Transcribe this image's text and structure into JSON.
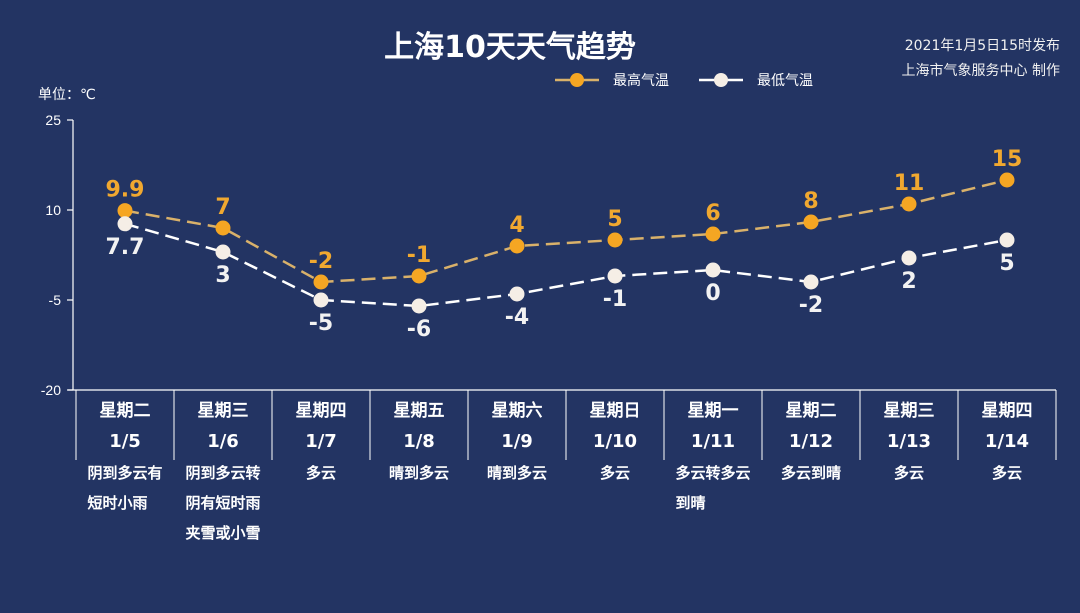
{
  "title": "上海10天天气趋势",
  "publish": {
    "time": "2021年1月5日15时发布",
    "maker": "上海市气象服务中心 制作"
  },
  "colors": {
    "background": "#233463",
    "high": "#f5a623",
    "high_line": "#d9b16a",
    "low": "#f5eee6"
  },
  "chart_data": {
    "type": "line",
    "title": "上海10天天气趋势",
    "ylabel": "单位：℃",
    "ylim": [
      -20,
      25
    ],
    "yticks": [
      25,
      10,
      -5,
      -20
    ],
    "ytick_labels": [
      "25",
      "10",
      "-5",
      "-20"
    ],
    "legend_position": "top-center",
    "categories": [
      "1/5",
      "1/6",
      "1/7",
      "1/8",
      "1/9",
      "1/10",
      "1/11",
      "1/12",
      "1/13",
      "1/14"
    ],
    "weekdays": [
      "星期二",
      "星期三",
      "星期四",
      "星期五",
      "星期六",
      "星期日",
      "星期一",
      "星期二",
      "星期三",
      "星期四"
    ],
    "weather": [
      [
        "阴到多云有",
        "短时小雨"
      ],
      [
        "阴到多云转",
        "阴有短时雨",
        "夹雪或小雪"
      ],
      [
        "多云"
      ],
      [
        "晴到多云"
      ],
      [
        "晴到多云"
      ],
      [
        "多云"
      ],
      [
        "多云转多云",
        "到晴"
      ],
      [
        "多云到晴"
      ],
      [
        "多云"
      ],
      [
        "多云"
      ]
    ],
    "series": [
      {
        "name": "最高气温",
        "values": [
          9.9,
          7,
          -2,
          -1,
          4,
          5,
          6,
          8,
          11,
          15
        ],
        "labels": [
          "9.9",
          "7",
          "-2",
          "-1",
          "4",
          "5",
          "6",
          "8",
          "11",
          "15"
        ]
      },
      {
        "name": "最低气温",
        "values": [
          7.7,
          3,
          -5,
          -6,
          -4,
          -1,
          0,
          -2,
          2,
          5
        ],
        "labels": [
          "7.7",
          "3",
          "-5",
          "-6",
          "-4",
          "-1",
          "0",
          "-2",
          "2",
          "5"
        ]
      }
    ]
  }
}
